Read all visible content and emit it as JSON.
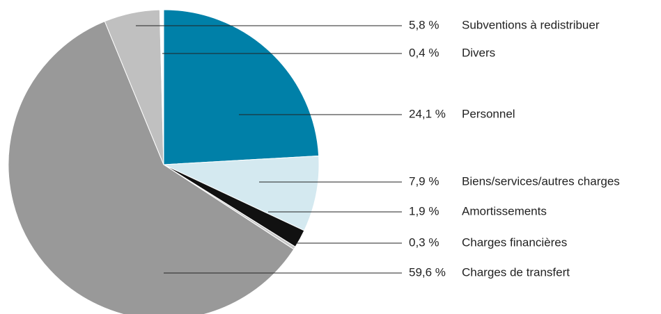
{
  "chart_data": {
    "type": "pie",
    "categories": [
      "Personnel",
      "Biens/services/autres charges",
      "Amortissements",
      "Charges financières",
      "Charges de transfert",
      "Subventions à redistribuer",
      "Divers"
    ],
    "values": [
      24.1,
      7.9,
      1.9,
      0.3,
      59.6,
      5.8,
      0.4
    ],
    "value_labels": [
      "24,1 %",
      "7,9 %",
      "1,9 %",
      "0,3 %",
      "59,6 %",
      "5,8 %",
      "0,4 %"
    ],
    "colors": [
      "#0080a8",
      "#d4e9f0",
      "#111111",
      "#c8c8c8",
      "#999999",
      "#c0c0c0",
      "#ffffff"
    ]
  }
}
